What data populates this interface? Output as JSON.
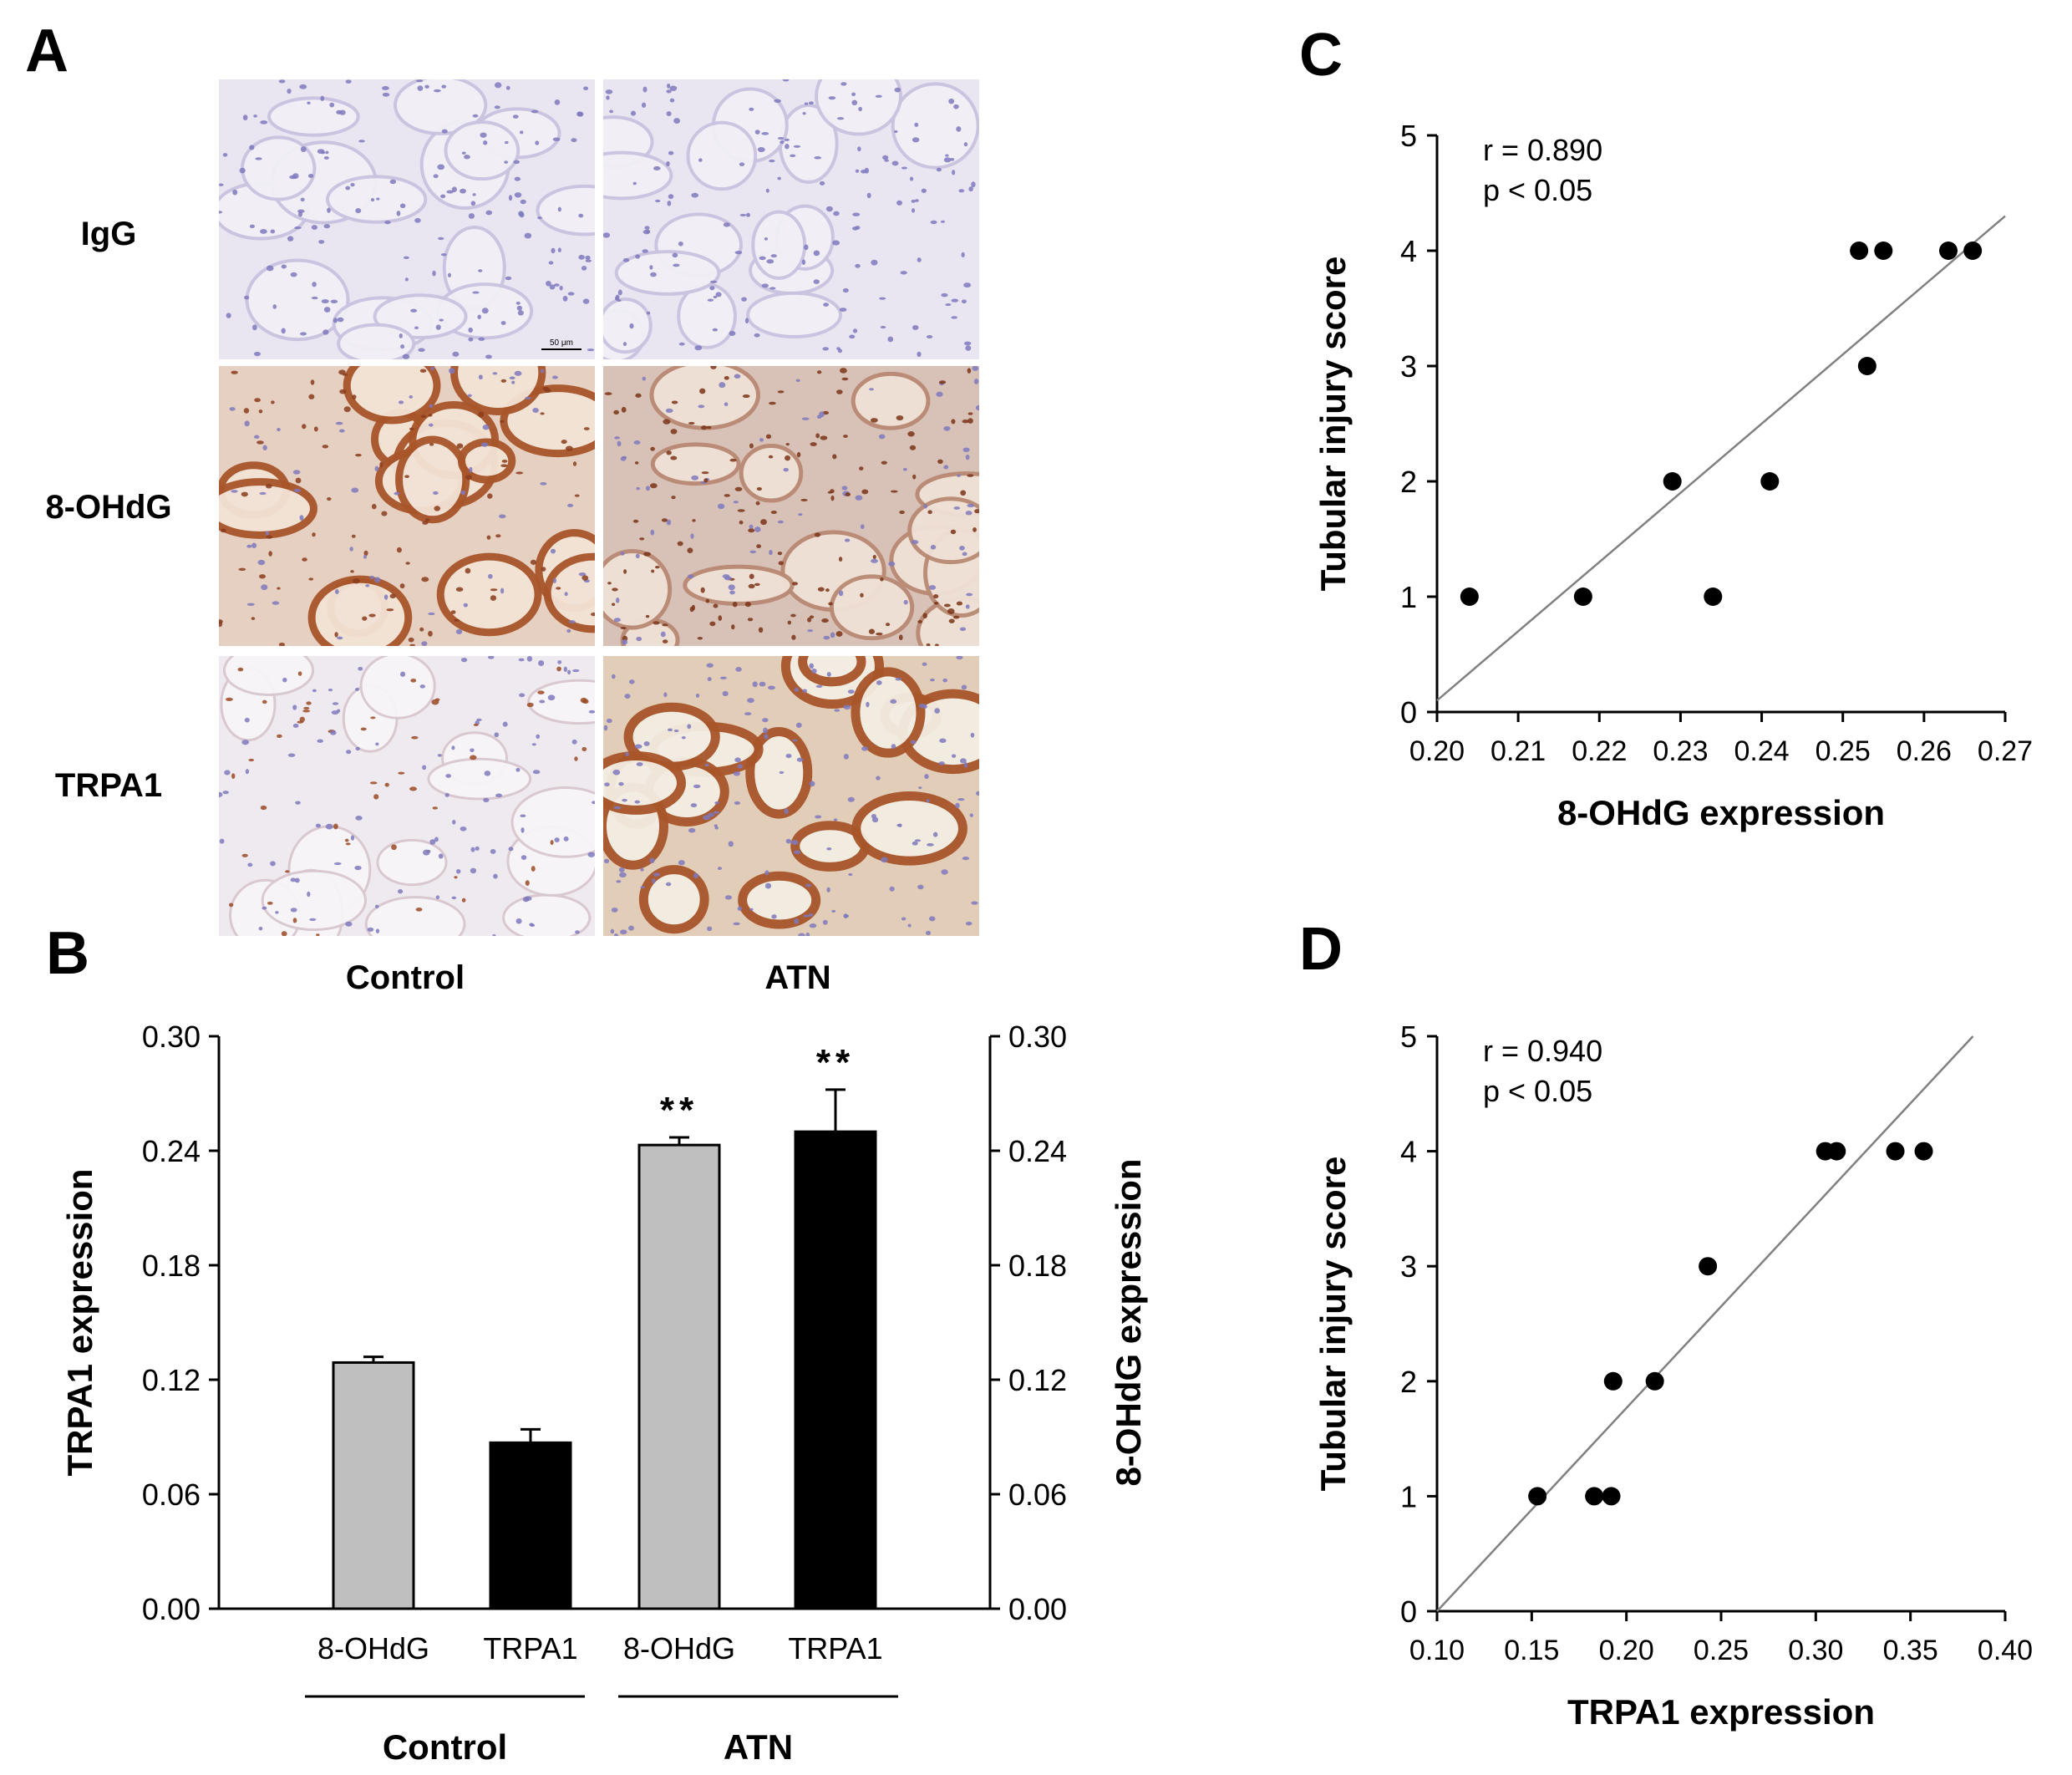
{
  "panels": {
    "A": {
      "label": "A",
      "rows": [
        "IgG",
        "8-OHdG",
        "TRPA1"
      ],
      "columns": [
        "Control",
        "ATN"
      ],
      "scale_bar": "50 μm"
    },
    "B": {
      "label": "B"
    },
    "C": {
      "label": "C"
    },
    "D": {
      "label": "D"
    }
  },
  "colors": {
    "control_bar": "#bfbfbf",
    "atn_bar": "#000000",
    "ihc_background": "#e9e6f1",
    "hematoxylin": "#7f79bd",
    "dab_stain": "#a8552a",
    "regression_line": "#808080"
  },
  "chart_data": [
    {
      "panel": "B",
      "type": "bar",
      "categories": [
        "8-OHdG",
        "TRPA1",
        "8-OHdG",
        "TRPA1"
      ],
      "groups": [
        {
          "name": "Control",
          "categories": [
            "8-OHdG",
            "TRPA1"
          ]
        },
        {
          "name": "ATN",
          "categories": [
            "8-OHdG",
            "TRPA1"
          ]
        }
      ],
      "values": [
        0.129,
        0.087,
        0.243,
        0.25
      ],
      "errors": [
        0.003,
        0.007,
        0.004,
        0.022
      ],
      "annotations": [
        "",
        "",
        "**",
        "**"
      ],
      "bar_colors": [
        "#bfbfbf",
        "#000000",
        "#bfbfbf",
        "#000000"
      ],
      "ylabel": "TRPA1 expression",
      "y2label": "8-OHdG expression",
      "ylim": [
        0,
        0.3
      ],
      "yticks": [
        "0.00",
        "0.06",
        "0.12",
        "0.18",
        "0.24",
        "0.30"
      ],
      "y2ticks": [
        "0.00",
        "0.06",
        "0.12",
        "0.18",
        "0.24",
        "0.30"
      ]
    },
    {
      "panel": "C",
      "type": "scatter",
      "xlabel": "8-OHdG expression",
      "ylabel": "Tubular injury score",
      "annotation": [
        "r = 0.890",
        "p < 0.05"
      ],
      "xlim": [
        0.2,
        0.27
      ],
      "ylim": [
        0,
        5
      ],
      "xticks": [
        "0.20",
        "0.21",
        "0.22",
        "0.23",
        "0.24",
        "0.25",
        "0.26",
        "0.27"
      ],
      "yticks": [
        "0",
        "1",
        "2",
        "3",
        "4",
        "5"
      ],
      "points": [
        {
          "x": 0.204,
          "y": 1
        },
        {
          "x": 0.218,
          "y": 1
        },
        {
          "x": 0.229,
          "y": 2
        },
        {
          "x": 0.234,
          "y": 1
        },
        {
          "x": 0.241,
          "y": 2
        },
        {
          "x": 0.252,
          "y": 4
        },
        {
          "x": 0.253,
          "y": 3
        },
        {
          "x": 0.255,
          "y": 4
        },
        {
          "x": 0.263,
          "y": 4
        },
        {
          "x": 0.266,
          "y": 4
        }
      ],
      "fit_line": {
        "x": [
          0.2,
          0.27
        ],
        "y": [
          0.1,
          4.3
        ]
      }
    },
    {
      "panel": "D",
      "type": "scatter",
      "xlabel": "TRPA1 expression",
      "ylabel": "Tubular injury score",
      "annotation": [
        "r = 0.940",
        "p < 0.05"
      ],
      "xlim": [
        0.1,
        0.4
      ],
      "ylim": [
        0,
        5
      ],
      "xticks": [
        "0.10",
        "0.15",
        "0.20",
        "0.25",
        "0.30",
        "0.35",
        "0.40"
      ],
      "yticks": [
        "0",
        "1",
        "2",
        "3",
        "4",
        "5"
      ],
      "points": [
        {
          "x": 0.153,
          "y": 1
        },
        {
          "x": 0.183,
          "y": 1
        },
        {
          "x": 0.192,
          "y": 1
        },
        {
          "x": 0.193,
          "y": 2
        },
        {
          "x": 0.215,
          "y": 2
        },
        {
          "x": 0.243,
          "y": 3
        },
        {
          "x": 0.305,
          "y": 4
        },
        {
          "x": 0.311,
          "y": 4
        },
        {
          "x": 0.342,
          "y": 4
        },
        {
          "x": 0.357,
          "y": 4
        }
      ],
      "fit_line": {
        "x": [
          0.1,
          0.383
        ],
        "y": [
          0,
          5
        ]
      }
    }
  ]
}
